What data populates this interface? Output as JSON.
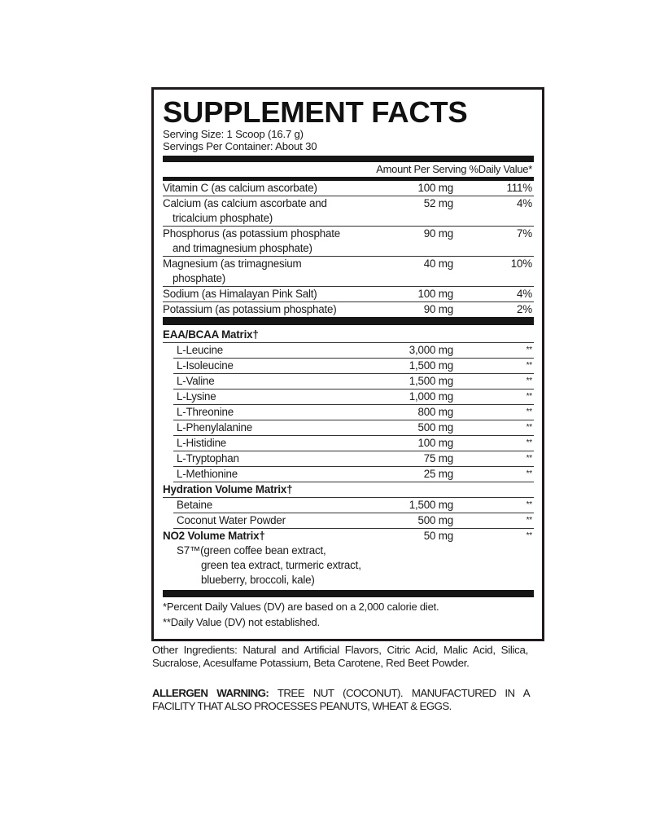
{
  "title": "SUPPLEMENT FACTS",
  "serving_size": "Serving Size: 1 Scoop (16.7 g)",
  "servings_per_container": "Servings Per Container: About 30",
  "header": "Amount Per Serving %Daily Value*",
  "nutrients": [
    {
      "name": "Vitamin C (as calcium ascorbate)",
      "name2": "",
      "amount": "100 mg",
      "dv": "111%"
    },
    {
      "name": "Calcium (as calcium ascorbate and",
      "name2": "tricalcium phosphate)",
      "amount": "52 mg",
      "dv": "4%"
    },
    {
      "name": "Phosphorus (as potassium phosphate",
      "name2": "and trimagnesium phosphate)",
      "amount": "90 mg",
      "dv": "7%"
    },
    {
      "name": "Magnesium (as trimagnesium",
      "name2": "phosphate)",
      "amount": "40 mg",
      "dv": "10%"
    },
    {
      "name": "Sodium (as Himalayan Pink Salt)",
      "name2": "",
      "amount": "100 mg",
      "dv": "4%"
    },
    {
      "name": "Potassium (as potassium phosphate)",
      "name2": "",
      "amount": "90 mg",
      "dv": "2%"
    }
  ],
  "blends": [
    {
      "name": "EAA/BCAA Matrix†",
      "amount": "",
      "dv": "",
      "items": [
        {
          "name": "L-Leucine",
          "amount": "3,000 mg",
          "dv": "**"
        },
        {
          "name": "L-Isoleucine",
          "amount": "1,500 mg",
          "dv": "**"
        },
        {
          "name": "L-Valine",
          "amount": "1,500 mg",
          "dv": "**"
        },
        {
          "name": "L-Lysine",
          "amount": "1,000 mg",
          "dv": "**"
        },
        {
          "name": "L-Threonine",
          "amount": "800 mg",
          "dv": "**"
        },
        {
          "name": "L-Phenylalanine",
          "amount": "500 mg",
          "dv": "**"
        },
        {
          "name": "L-Histidine",
          "amount": "100 mg",
          "dv": "**"
        },
        {
          "name": "L-Tryptophan",
          "amount": "75 mg",
          "dv": "**"
        },
        {
          "name": "L-Methionine",
          "amount": "25 mg",
          "dv": "**"
        }
      ]
    },
    {
      "name": "Hydration Volume Matrix†",
      "amount": "",
      "dv": "",
      "items": [
        {
          "name": "Betaine",
          "amount": "1,500 mg",
          "dv": "**"
        },
        {
          "name": "Coconut Water Powder",
          "amount": "500 mg",
          "dv": "**"
        }
      ]
    },
    {
      "name": "NO2 Volume Matrix†",
      "amount": "50 mg",
      "dv": "**",
      "items": []
    }
  ],
  "no2_description": [
    "S7™(green coffee bean extract,",
    "green tea extract, turmeric extract,",
    "blueberry, broccoli, kale)"
  ],
  "footnotes": [
    "*Percent Daily Values (DV) are based on a 2,000 calorie diet.",
    "**Daily Value (DV) not established."
  ],
  "other_ingredients": "Other Ingredients: Natural and Artificial Flavors, Citric Acid, Malic Acid, Silica, Sucralose, Acesulfame Potassium, Beta Carotene, Red Beet Powder.",
  "allergen_label": "ALLERGEN WARNING:",
  "allergen_text": " TREE NUT (COCONUT). MANUFACTURED IN A FACILITY THAT ALSO PROCESSES PEANUTS, WHEAT & EGGS."
}
